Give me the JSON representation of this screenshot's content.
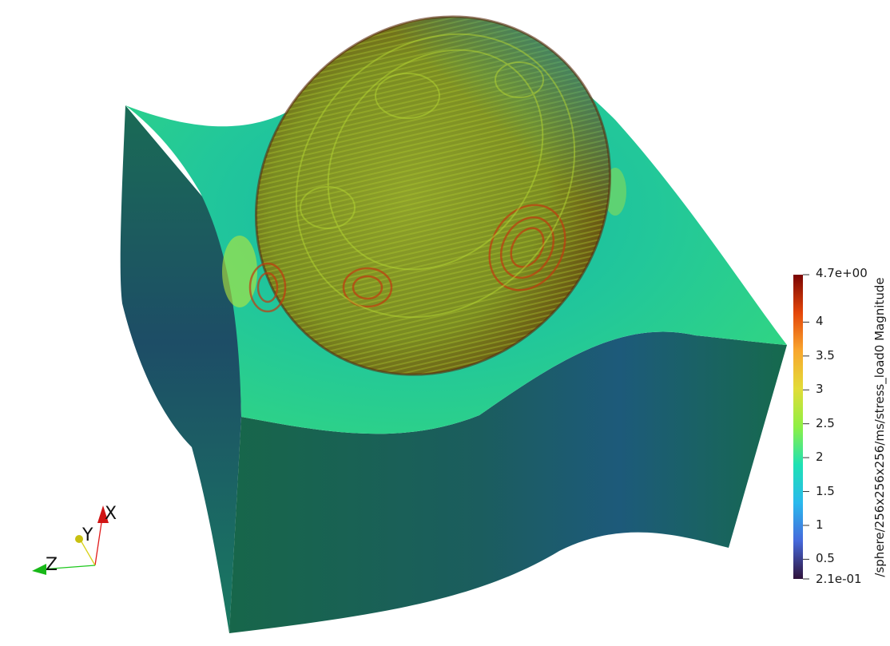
{
  "colorbar": {
    "title": "/sphere/256x256x256/ms/stress_load0 Magnitude",
    "max_label": "4.7e+00",
    "min_label": "2.1e-01",
    "min_value": 0.21,
    "max_value": 4.7,
    "tick_values": [
      4,
      3.5,
      3,
      2.5,
      2,
      1.5,
      1,
      0.5
    ],
    "tick_labels": [
      "4",
      "3.5",
      "3",
      "2.5",
      "2",
      "1.5",
      "1",
      "0.5"
    ],
    "colormap": [
      "#30123b",
      "#4669db",
      "#2ab9ed",
      "#1ee1b4",
      "#8ef045",
      "#e2dc37",
      "#f9a72e",
      "#e4460a",
      "#7a0403"
    ]
  },
  "axes": {
    "x_label": "X",
    "y_label": "Y",
    "z_label": "Z",
    "x_color": "#e11b1b",
    "y_color": "#d9d21a",
    "z_color": "#1ec81e"
  },
  "surface_colors": {
    "top_face": "#2fd28b",
    "front_face": "#17664f",
    "left_face": "#1a5f64",
    "ellipsoid": "#7a8a1c",
    "ellipsoid_ridge": "#a6c32a",
    "ellipsoid_hot": "#b53a12"
  }
}
